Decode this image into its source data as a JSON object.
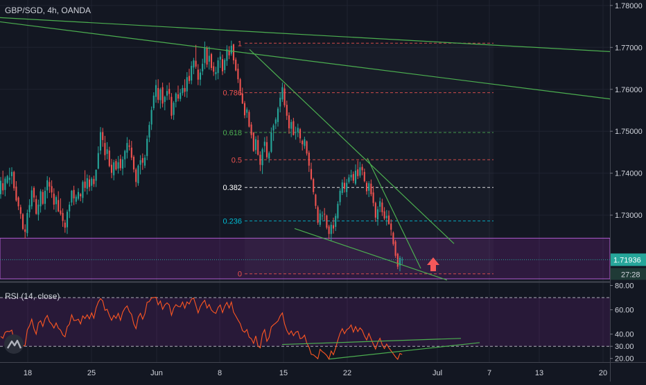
{
  "chart_data": {
    "type": "candlestick",
    "symbol_label": "GBP/SGD, 4h, OANDA",
    "price_axis": {
      "ticks": [
        "1.78000",
        "1.77000",
        "1.76000",
        "1.75000",
        "1.74000",
        "1.73000"
      ],
      "tick_values": [
        1.78,
        1.77,
        1.76,
        1.75,
        1.74,
        1.73
      ],
      "range": [
        1.7143,
        1.7813
      ]
    },
    "last_price": {
      "value": "1.71936",
      "price": 1.71936,
      "countdown": "27:28",
      "color": "#26a69a"
    },
    "time_axis": {
      "labels": [
        "18",
        "25",
        "Jun",
        "8",
        "15",
        "22",
        "Jul",
        "7",
        "13",
        "20"
      ]
    },
    "colors": {
      "up": "#26a69a",
      "down": "#ef5350",
      "trendline": "#4caf50",
      "zone": "#9c27b0",
      "rsi": "#ff5722"
    },
    "fibonacci": [
      {
        "label": "1",
        "price": 1.771,
        "color": "#ef5350"
      },
      {
        "label": "0.786",
        "price": 1.7592,
        "color": "#ef5350"
      },
      {
        "label": "0.618",
        "price": 1.7497,
        "color": "#4caf50"
      },
      {
        "label": "0.5",
        "price": 1.7432,
        "color": "#ef5350"
      },
      {
        "label": "0.382",
        "price": 1.7366,
        "color": "#ffffff"
      },
      {
        "label": "0.236",
        "price": 1.7286,
        "color": "#00bcd4"
      },
      {
        "label": "0",
        "price": 1.716,
        "color": "#ef5350"
      }
    ],
    "support_zone": {
      "top": 1.7245,
      "bottom": 1.7148
    },
    "candles": [
      [
        1.735,
        1.7391,
        1.7339,
        1.7382
      ],
      [
        1.7376,
        1.7406,
        1.7349,
        1.7359
      ],
      [
        1.736,
        1.7392,
        1.7345,
        1.7387
      ],
      [
        1.7377,
        1.7396,
        1.7374,
        1.7393
      ],
      [
        1.7384,
        1.7413,
        1.7368,
        1.7389
      ],
      [
        1.7393,
        1.7414,
        1.7374,
        1.7403
      ],
      [
        1.7403,
        1.7406,
        1.7358,
        1.7364
      ],
      [
        1.7368,
        1.7381,
        1.7332,
        1.7335
      ],
      [
        1.7342,
        1.7345,
        1.7312,
        1.7321
      ],
      [
        1.7319,
        1.7325,
        1.7291,
        1.7303
      ],
      [
        1.7302,
        1.7305,
        1.7264,
        1.7267
      ],
      [
        1.7266,
        1.7278,
        1.7244,
        1.726
      ],
      [
        1.7257,
        1.7313,
        1.7249,
        1.7305
      ],
      [
        1.7307,
        1.7338,
        1.7294,
        1.7324
      ],
      [
        1.7321,
        1.7369,
        1.7314,
        1.7359
      ],
      [
        1.7365,
        1.7369,
        1.7331,
        1.7342
      ],
      [
        1.7338,
        1.7347,
        1.7301,
        1.7303
      ],
      [
        1.7301,
        1.7337,
        1.7287,
        1.7325
      ],
      [
        1.7321,
        1.7362,
        1.7306,
        1.7357
      ],
      [
        1.7355,
        1.7361,
        1.7324,
        1.7327
      ],
      [
        1.7327,
        1.7367,
        1.7313,
        1.7358
      ],
      [
        1.7359,
        1.7393,
        1.734,
        1.7383
      ],
      [
        1.7379,
        1.739,
        1.7353,
        1.7368
      ],
      [
        1.7369,
        1.7383,
        1.7341,
        1.7354
      ],
      [
        1.7351,
        1.7364,
        1.7313,
        1.7325
      ],
      [
        1.7326,
        1.7347,
        1.7307,
        1.7343
      ],
      [
        1.7336,
        1.7357,
        1.7307,
        1.7309
      ],
      [
        1.7311,
        1.734,
        1.7299,
        1.7303
      ],
      [
        1.7305,
        1.7316,
        1.7272,
        1.7286
      ],
      [
        1.7282,
        1.7289,
        1.7258,
        1.727
      ],
      [
        1.7271,
        1.7313,
        1.7255,
        1.7308
      ],
      [
        1.7309,
        1.7332,
        1.7293,
        1.7325
      ],
      [
        1.733,
        1.736,
        1.7322,
        1.7358
      ],
      [
        1.736,
        1.737,
        1.7324,
        1.734
      ],
      [
        1.7332,
        1.7349,
        1.7326,
        1.7344
      ],
      [
        1.7339,
        1.7364,
        1.7335,
        1.7355
      ],
      [
        1.735,
        1.7353,
        1.7333,
        1.7345
      ],
      [
        1.7341,
        1.7383,
        1.7329,
        1.7379
      ],
      [
        1.738,
        1.7407,
        1.7356,
        1.7365
      ],
      [
        1.7363,
        1.7397,
        1.7349,
        1.7388
      ],
      [
        1.7385,
        1.7395,
        1.7357,
        1.7367
      ],
      [
        1.737,
        1.7391,
        1.7358,
        1.7387
      ],
      [
        1.7386,
        1.7394,
        1.7367,
        1.7374
      ],
      [
        1.7382,
        1.7409,
        1.7367,
        1.7408
      ],
      [
        1.7411,
        1.7464,
        1.7409,
        1.7448
      ],
      [
        1.7454,
        1.751,
        1.7445,
        1.7498
      ],
      [
        1.7498,
        1.7508,
        1.7463,
        1.7479
      ],
      [
        1.7472,
        1.7489,
        1.7431,
        1.7443
      ],
      [
        1.7446,
        1.7474,
        1.7433,
        1.7457
      ],
      [
        1.7454,
        1.7463,
        1.7414,
        1.7417
      ],
      [
        1.742,
        1.7434,
        1.7388,
        1.7401
      ],
      [
        1.7395,
        1.7432,
        1.7383,
        1.7426
      ],
      [
        1.7429,
        1.7434,
        1.7406,
        1.7409
      ],
      [
        1.7411,
        1.7441,
        1.7399,
        1.7426
      ],
      [
        1.7434,
        1.7444,
        1.7406,
        1.7412
      ],
      [
        1.7411,
        1.744,
        1.7395,
        1.7433
      ],
      [
        1.7433,
        1.7456,
        1.7413,
        1.7453
      ],
      [
        1.7449,
        1.7486,
        1.7435,
        1.7472
      ],
      [
        1.7466,
        1.748,
        1.7454,
        1.7463
      ],
      [
        1.7461,
        1.7477,
        1.7431,
        1.7437
      ],
      [
        1.7439,
        1.7443,
        1.7402,
        1.7409
      ],
      [
        1.7409,
        1.7413,
        1.7367,
        1.7379
      ],
      [
        1.7376,
        1.7421,
        1.737,
        1.7418
      ],
      [
        1.742,
        1.7443,
        1.7397,
        1.7431
      ],
      [
        1.7436,
        1.7447,
        1.7408,
        1.7425
      ],
      [
        1.7418,
        1.7444,
        1.7412,
        1.7437
      ],
      [
        1.7441,
        1.749,
        1.7431,
        1.7482
      ],
      [
        1.7485,
        1.7523,
        1.7474,
        1.7515
      ],
      [
        1.7516,
        1.7559,
        1.7503,
        1.7551
      ],
      [
        1.7555,
        1.7593,
        1.755,
        1.7585
      ],
      [
        1.7582,
        1.7623,
        1.7568,
        1.761
      ],
      [
        1.7603,
        1.7624,
        1.7567,
        1.7575
      ],
      [
        1.7574,
        1.7604,
        1.7554,
        1.76
      ],
      [
        1.7605,
        1.7616,
        1.7557,
        1.7566
      ],
      [
        1.757,
        1.7585,
        1.755,
        1.7582
      ],
      [
        1.7585,
        1.761,
        1.7574,
        1.7596
      ],
      [
        1.7601,
        1.7616,
        1.7575,
        1.7589
      ],
      [
        1.7582,
        1.7591,
        1.7529,
        1.7537
      ],
      [
        1.7539,
        1.7572,
        1.7527,
        1.7568
      ],
      [
        1.757,
        1.7593,
        1.7557,
        1.759
      ],
      [
        1.7588,
        1.7609,
        1.7571,
        1.7578
      ],
      [
        1.7577,
        1.7601,
        1.7571,
        1.7592
      ],
      [
        1.7591,
        1.761,
        1.7585,
        1.7603
      ],
      [
        1.7603,
        1.7624,
        1.7582,
        1.7594
      ],
      [
        1.7595,
        1.7641,
        1.758,
        1.7629
      ],
      [
        1.7632,
        1.7649,
        1.7613,
        1.762
      ],
      [
        1.7621,
        1.7667,
        1.7612,
        1.7656
      ],
      [
        1.7652,
        1.7675,
        1.7636,
        1.7669
      ],
      [
        1.7668,
        1.7706,
        1.7649,
        1.7654
      ],
      [
        1.7647,
        1.766,
        1.761,
        1.7623
      ],
      [
        1.7623,
        1.7649,
        1.7609,
        1.764
      ],
      [
        1.7643,
        1.7673,
        1.7634,
        1.7661
      ],
      [
        1.7663,
        1.7714,
        1.7648,
        1.7698
      ],
      [
        1.7698,
        1.7703,
        1.7652,
        1.7659
      ],
      [
        1.7666,
        1.7702,
        1.7647,
        1.768
      ],
      [
        1.7684,
        1.7687,
        1.7645,
        1.7651
      ],
      [
        1.7655,
        1.7665,
        1.7632,
        1.7642
      ],
      [
        1.7636,
        1.7654,
        1.7622,
        1.7641
      ],
      [
        1.7639,
        1.7676,
        1.7624,
        1.7669
      ],
      [
        1.7671,
        1.769,
        1.7651,
        1.7678
      ],
      [
        1.7672,
        1.7683,
        1.7634,
        1.7643
      ],
      [
        1.7646,
        1.7674,
        1.7638,
        1.767
      ],
      [
        1.7668,
        1.7705,
        1.7656,
        1.7696
      ],
      [
        1.7692,
        1.7703,
        1.7672,
        1.7681
      ],
      [
        1.7685,
        1.7716,
        1.768,
        1.7704
      ],
      [
        1.7707,
        1.7709,
        1.766,
        1.7669
      ],
      [
        1.7671,
        1.7676,
        1.7643,
        1.7645
      ],
      [
        1.7649,
        1.7661,
        1.7615,
        1.7624
      ],
      [
        1.7624,
        1.7627,
        1.7586,
        1.7597
      ],
      [
        1.759,
        1.7604,
        1.7565,
        1.7566
      ],
      [
        1.7567,
        1.7572,
        1.7531,
        1.7538
      ],
      [
        1.7544,
        1.7557,
        1.7532,
        1.7552
      ],
      [
        1.7546,
        1.7551,
        1.7509,
        1.7511
      ],
      [
        1.7516,
        1.7522,
        1.7483,
        1.7491
      ],
      [
        1.7497,
        1.7498,
        1.7451,
        1.7453
      ],
      [
        1.7455,
        1.7488,
        1.7446,
        1.7481
      ],
      [
        1.7479,
        1.749,
        1.7442,
        1.7444
      ],
      [
        1.7444,
        1.7452,
        1.7405,
        1.742
      ],
      [
        1.7419,
        1.7461,
        1.7398,
        1.7457
      ],
      [
        1.7465,
        1.7486,
        1.745,
        1.7475
      ],
      [
        1.7474,
        1.7488,
        1.7434,
        1.7438
      ],
      [
        1.7435,
        1.7452,
        1.7425,
        1.7448
      ],
      [
        1.7451,
        1.7509,
        1.7448,
        1.7497
      ],
      [
        1.7502,
        1.7518,
        1.7477,
        1.7514
      ],
      [
        1.7518,
        1.7533,
        1.7505,
        1.7528
      ],
      [
        1.7522,
        1.7558,
        1.7511,
        1.7554
      ],
      [
        1.7559,
        1.7593,
        1.7545,
        1.758
      ],
      [
        1.7576,
        1.7616,
        1.757,
        1.7605
      ],
      [
        1.7602,
        1.7612,
        1.7557,
        1.7562
      ],
      [
        1.7563,
        1.7573,
        1.7527,
        1.7537
      ],
      [
        1.7538,
        1.7545,
        1.7494,
        1.7507
      ],
      [
        1.7506,
        1.7528,
        1.7486,
        1.7522
      ],
      [
        1.7524,
        1.7532,
        1.749,
        1.7491
      ],
      [
        1.7496,
        1.7511,
        1.748,
        1.7498
      ],
      [
        1.7498,
        1.7518,
        1.7486,
        1.7508
      ],
      [
        1.7505,
        1.7508,
        1.7472,
        1.7483
      ],
      [
        1.7477,
        1.748,
        1.7454,
        1.7469
      ],
      [
        1.7465,
        1.7487,
        1.7458,
        1.7481
      ],
      [
        1.7476,
        1.7478,
        1.7442,
        1.7447
      ],
      [
        1.7449,
        1.7454,
        1.7403,
        1.7418
      ],
      [
        1.741,
        1.7425,
        1.7383,
        1.7386
      ],
      [
        1.7386,
        1.7389,
        1.7349,
        1.7355
      ],
      [
        1.7349,
        1.7351,
        1.7315,
        1.7322
      ],
      [
        1.7319,
        1.7323,
        1.7277,
        1.7282
      ],
      [
        1.7277,
        1.7313,
        1.7272,
        1.7304
      ],
      [
        1.7298,
        1.7309,
        1.7288,
        1.7299
      ],
      [
        1.7303,
        1.7317,
        1.7287,
        1.7302
      ],
      [
        1.7299,
        1.7301,
        1.7266,
        1.727
      ],
      [
        1.7273,
        1.7277,
        1.7243,
        1.7255
      ],
      [
        1.7255,
        1.7284,
        1.7239,
        1.7277
      ],
      [
        1.7276,
        1.7294,
        1.7256,
        1.7268
      ],
      [
        1.7272,
        1.7304,
        1.7262,
        1.7298
      ],
      [
        1.7293,
        1.7333,
        1.7289,
        1.7327
      ],
      [
        1.7331,
        1.7364,
        1.7323,
        1.7358
      ],
      [
        1.7353,
        1.7385,
        1.7348,
        1.7378
      ],
      [
        1.7377,
        1.7391,
        1.7354,
        1.7363
      ],
      [
        1.7355,
        1.7386,
        1.7343,
        1.7377
      ],
      [
        1.7379,
        1.7397,
        1.7375,
        1.739
      ],
      [
        1.739,
        1.7408,
        1.7382,
        1.7396
      ],
      [
        1.7398,
        1.7404,
        1.7376,
        1.7382
      ],
      [
        1.7375,
        1.7421,
        1.7371,
        1.7406
      ],
      [
        1.7409,
        1.743,
        1.7386,
        1.7393
      ],
      [
        1.7394,
        1.7427,
        1.7389,
        1.7414
      ],
      [
        1.7415,
        1.7422,
        1.7395,
        1.7407
      ],
      [
        1.7403,
        1.7411,
        1.7378,
        1.7381
      ],
      [
        1.7377,
        1.7381,
        1.7349,
        1.7357
      ],
      [
        1.7358,
        1.7381,
        1.7343,
        1.7376
      ],
      [
        1.7375,
        1.7385,
        1.7345,
        1.735
      ],
      [
        1.7354,
        1.7369,
        1.7321,
        1.7329
      ],
      [
        1.7329,
        1.7332,
        1.7284,
        1.7294
      ],
      [
        1.729,
        1.7321,
        1.7275,
        1.7314
      ],
      [
        1.732,
        1.7342,
        1.7307,
        1.7333
      ],
      [
        1.733,
        1.7339,
        1.7298,
        1.7307
      ],
      [
        1.7309,
        1.7319,
        1.7288,
        1.7292
      ],
      [
        1.7293,
        1.7312,
        1.7275,
        1.7298
      ],
      [
        1.7299,
        1.7311,
        1.7277,
        1.7279
      ],
      [
        1.728,
        1.729,
        1.7251,
        1.7265
      ],
      [
        1.7258,
        1.7261,
        1.7227,
        1.7231
      ],
      [
        1.7237,
        1.7241,
        1.7198,
        1.7203
      ],
      [
        1.7208,
        1.721,
        1.7171,
        1.7177
      ],
      [
        1.718,
        1.7203,
        1.7166,
        1.7198
      ],
      [
        1.7194,
        1.72,
        1.7183,
        1.7194
      ]
    ],
    "trendlines": [
      {
        "x1": 0,
        "y1": 1.7771,
        "x2": 880,
        "y2": 1.769,
        "color": "#4caf50"
      },
      {
        "x1": 0,
        "y1": 1.7761,
        "x2": 880,
        "y2": 1.7577,
        "color": "#4caf50"
      },
      {
        "x1": 360,
        "y1": 1.7695,
        "x2": 655,
        "y2": 1.7232,
        "color": "#4caf50"
      },
      {
        "x1": 530,
        "y1": 1.7436,
        "x2": 607,
        "y2": 1.7173,
        "color": "#4caf50"
      },
      {
        "x1": 425,
        "y1": 1.7268,
        "x2": 645,
        "y2": 1.7145,
        "color": "#4caf50"
      }
    ],
    "rsi": {
      "label": "RSI (14, close)",
      "ticks": [
        "80.00",
        "60.00",
        "40.00",
        "30.00",
        "20.00"
      ],
      "tick_values": [
        80,
        60,
        40,
        30,
        20
      ],
      "range": [
        17,
        82
      ],
      "band": [
        30,
        70
      ],
      "values": [
        38.1,
        36.6,
        41.5,
        42.3,
        42.1,
        43.3,
        35.1,
        29.5,
        28.7,
        31.9,
        30.1,
        30.8,
        43.5,
        46.8,
        52.3,
        44.3,
        40.0,
        49.2,
        51.0,
        46.3,
        52.5,
        55.4,
        50.2,
        48.2,
        45.0,
        49.2,
        44.9,
        43.2,
        39.3,
        37.8,
        46.1,
        48.2,
        55.9,
        51.2,
        51.4,
        52.3,
        48.4,
        55.0,
        52.8,
        55.9,
        52.5,
        57.5,
        53.1,
        61.5,
        66.4,
        69.2,
        67.3,
        59.6,
        60.4,
        55.3,
        51.4,
        55.4,
        53.0,
        57.1,
        51.4,
        58.0,
        61.3,
        63.2,
        58.5,
        56.2,
        48.3,
        44.5,
        53.9,
        57.1,
        52.3,
        56.7,
        66.1,
        66.8,
        69.8,
        70.1,
        70.3,
        64.1,
        67.2,
        60.4,
        64.0,
        65.7,
        63.9,
        55.5,
        61.4,
        64.2,
        62.8,
        62.5,
        66.4,
        61.3,
        66.5,
        64.8,
        68.7,
        69.6,
        63.7,
        57.4,
        62.6,
        65.7,
        67.8,
        61.4,
        64.3,
        59.8,
        58.0,
        57.1,
        61.9,
        64.0,
        57.7,
        62.9,
        66.1,
        61.4,
        66.4,
        58.0,
        54.9,
        51.6,
        48.6,
        42.9,
        41.5,
        43.8,
        37.6,
        36.2,
        32.4,
        38.5,
        30.1,
        28.7,
        40.0,
        43.7,
        34.1,
        37.3,
        45.9,
        47.7,
        49.1,
        50.8,
        55.0,
        57.4,
        48.3,
        43.0,
        39.7,
        42.6,
        38.7,
        41.5,
        42.3,
        36.3,
        36.9,
        39.2,
        32.6,
        29.4,
        23.4,
        23.0,
        21.4,
        19.8,
        27.5,
        25.6,
        24.3,
        22.5,
        19.5,
        26.1,
        23.1,
        28.5,
        35.1,
        40.8,
        44.5,
        40.4,
        43.6,
        44.8,
        47.5,
        41.7,
        46.2,
        42.1,
        45.1,
        43.1,
        38.5,
        35.2,
        40.6,
        36.0,
        31.8,
        27.7,
        33.2,
        36.6,
        31.3,
        28.1,
        31.8,
        28.7,
        26.3,
        23.9,
        21.3,
        19.3,
        24.1,
        23.3
      ],
      "trendlines": [
        {
          "x1": 407,
          "y1": 31.5,
          "x2": 665,
          "y2": 36.5
        },
        {
          "x1": 475,
          "y1": 19.5,
          "x2": 692,
          "y2": 33.0
        }
      ]
    }
  }
}
